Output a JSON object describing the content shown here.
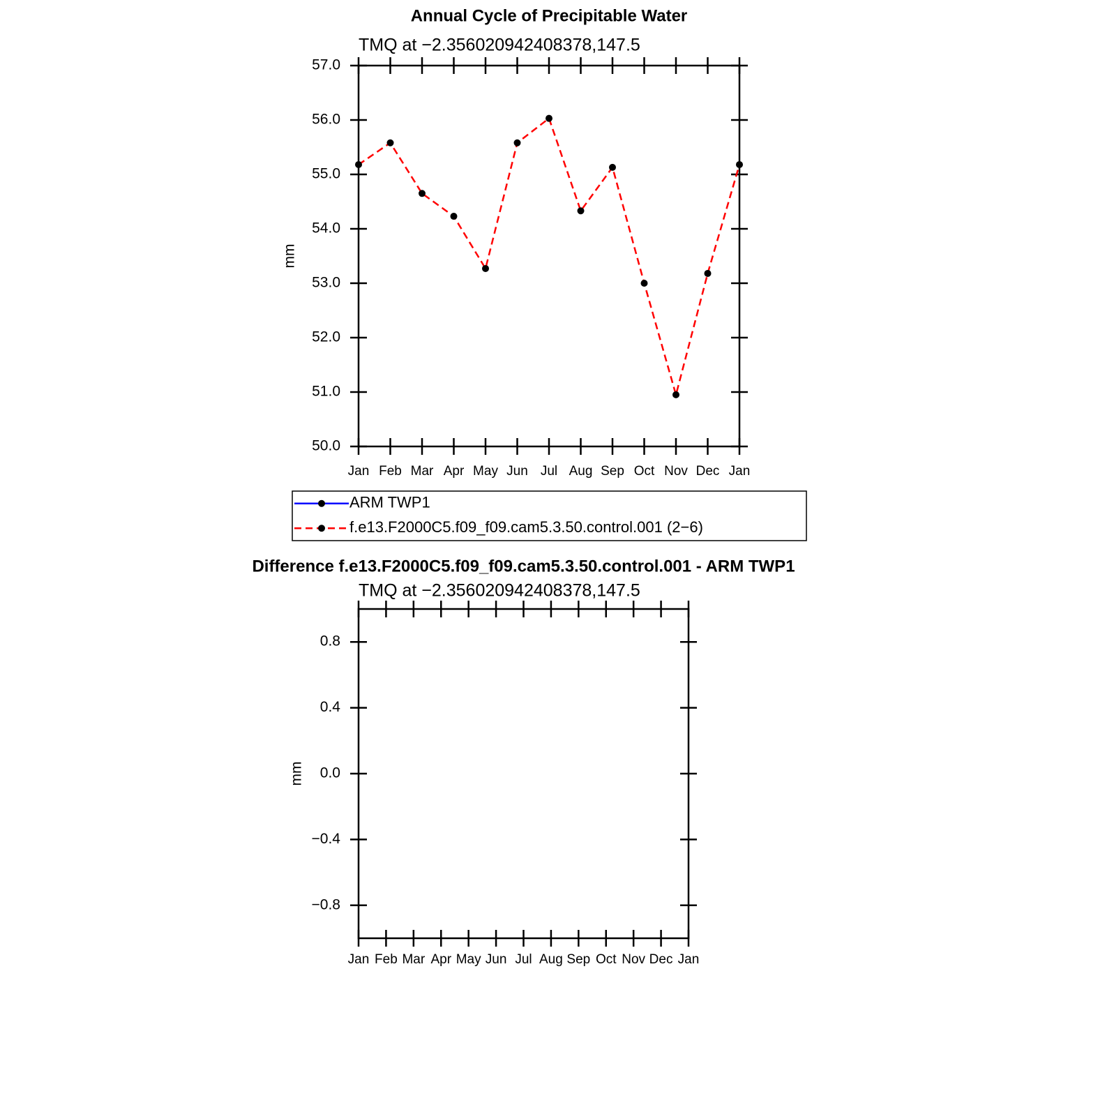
{
  "chart_data": [
    {
      "type": "line",
      "title": "Annual Cycle of Precipitable Water",
      "subtitle": "TMQ at −2.356020942408378,147.5",
      "y_label": "mm",
      "categories": [
        "Jan",
        "Feb",
        "Mar",
        "Apr",
        "May",
        "Jun",
        "Jul",
        "Aug",
        "Sep",
        "Oct",
        "Nov",
        "Dec",
        "Jan"
      ],
      "series": [
        {
          "name": "ARM TWP1",
          "color": "#0000ff",
          "line_style": "solid",
          "marker_color": "#000000",
          "values": [
            null,
            null,
            null,
            null,
            null,
            null,
            null,
            null,
            null,
            null,
            null,
            null,
            null
          ]
        },
        {
          "name": "f.e13.F2000C5.f09_f09.cam5.3.50.control.001 (2−6)",
          "color": "#ff0000",
          "line_style": "dashed",
          "marker_color": "#000000",
          "values": [
            55.18,
            55.58,
            54.65,
            54.23,
            53.27,
            55.58,
            56.03,
            54.33,
            55.13,
            53.0,
            50.95,
            53.18,
            55.18
          ]
        }
      ],
      "ylim": [
        50,
        57
      ],
      "yticks": [
        {
          "value": 50,
          "label": "50.0"
        },
        {
          "value": 51,
          "label": "51.0"
        },
        {
          "value": 52,
          "label": "52.0"
        },
        {
          "value": 53,
          "label": "53.0"
        },
        {
          "value": 54,
          "label": "54.0"
        },
        {
          "value": 55,
          "label": "55.0"
        },
        {
          "value": 56,
          "label": "56.0"
        },
        {
          "value": 57,
          "label": "57.0"
        }
      ],
      "legend": "below"
    },
    {
      "type": "line",
      "title": "Difference f.e13.F2000C5.f09_f09.cam5.3.50.control.001 - ARM TWP1",
      "subtitle": "TMQ at −2.356020942408378,147.5",
      "y_label": "mm",
      "categories": [
        "Jan",
        "Feb",
        "Mar",
        "Apr",
        "May",
        "Jun",
        "Jul",
        "Aug",
        "Sep",
        "Oct",
        "Nov",
        "Dec",
        "Jan"
      ],
      "series": [],
      "ylim": [
        -1,
        1
      ],
      "yticks": [
        {
          "value": -0.8,
          "label": "−0.8"
        },
        {
          "value": -0.4,
          "label": "−0.4"
        },
        {
          "value": 0,
          "label": "0.0"
        },
        0.4,
        0.8
      ]
    }
  ]
}
